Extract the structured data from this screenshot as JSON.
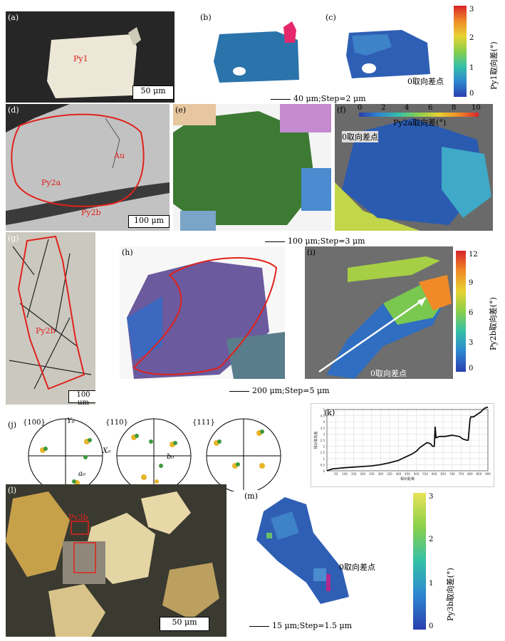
{
  "panels": {
    "a": {
      "label": "(a)",
      "mineral": "Py1",
      "scale": "50 μm"
    },
    "b": {
      "label": "(b)"
    },
    "c": {
      "label": "(c)",
      "zero_point": "0取向差点"
    },
    "d": {
      "label": "(d)",
      "au": "Au",
      "py2a": "Py2a",
      "py2b": "Py2b",
      "scale": "100 μm"
    },
    "e": {
      "label": "(e)"
    },
    "f": {
      "label": "(f)",
      "zero_point": "0取向差点"
    },
    "g": {
      "label": "(g)",
      "py2b": "Py2b",
      "scale": "100 μm"
    },
    "h": {
      "label": "(h)"
    },
    "i": {
      "label": "(i)",
      "zero_point": "0取向差点"
    },
    "j": {
      "label": "(j)",
      "poles": [
        "{100}",
        "{110}",
        "{111}"
      ],
      "y0": "Y₀",
      "x0": "X₀",
      "a0": "a₀",
      "b0": "b₀"
    },
    "k": {
      "label": "(k)"
    },
    "l": {
      "label": "(l)",
      "py3b": "Py3b",
      "scale": "50 μm"
    },
    "m": {
      "label": "(m)",
      "zero_point": "0取向差点"
    }
  },
  "captions": {
    "row1": "40 μm;Step=2 μm",
    "row2": "100 μm;Step=3 μm",
    "row3": "200 μm;Step=5 μm",
    "row5": "15 μm;Step=1.5 μm"
  },
  "colorbars": {
    "py1": {
      "title": "Py1取向差(°)",
      "ticks": [
        "0",
        "1",
        "2",
        "3"
      ]
    },
    "py2a": {
      "title": "Py2a取向差(°)",
      "ticks": [
        "0",
        "2",
        "4",
        "6",
        "8",
        "10"
      ]
    },
    "py2b": {
      "title": "Py2b取向差(°)",
      "ticks": [
        "0",
        "3",
        "6",
        "9",
        "12"
      ]
    },
    "py3b": {
      "title": "Py3b取向差(°)",
      "ticks": [
        "0",
        "1",
        "2",
        "3"
      ]
    }
  },
  "colors": {
    "red_outline": "#e0221c",
    "ebsd_blue": "#2e72b0",
    "ebsd_green": "#3d7a34",
    "ebsd_purple": "#6b5a9e"
  },
  "chart_data": {
    "type": "line",
    "title": "",
    "xlabel": "相对距离",
    "ylabel": "相对取向差",
    "xlim": [
      0,
      900
    ],
    "ylim": [
      0,
      5
    ],
    "x_ticks": [
      "50",
      "100",
      "150",
      "200",
      "250",
      "300",
      "350",
      "400",
      "450",
      "500",
      "550",
      "600",
      "650",
      "700",
      "750",
      "800",
      "850",
      "900"
    ],
    "y_ticks": [
      "0",
      "0.5",
      "1",
      "1.5",
      "2",
      "2.5",
      "3",
      "3.5",
      "4",
      "4.5",
      "5"
    ],
    "series": [
      {
        "x": [
          0,
          30,
          60,
          100,
          150,
          200,
          250,
          300,
          350,
          400,
          450,
          480,
          500,
          520,
          540,
          560,
          580,
          590,
          600,
          605,
          610,
          630,
          660,
          700,
          740,
          760,
          780,
          790,
          800,
          805,
          820,
          840,
          860,
          880,
          900
        ],
        "y": [
          0,
          0.15,
          0.2,
          0.25,
          0.3,
          0.35,
          0.4,
          0.5,
          0.65,
          0.85,
          1.2,
          1.4,
          1.6,
          1.9,
          2.1,
          2.3,
          2.2,
          2.0,
          2.0,
          3.6,
          2.7,
          2.8,
          2.8,
          2.9,
          2.8,
          2.6,
          2.5,
          2.5,
          4.2,
          4.4,
          4.4,
          4.6,
          4.8,
          5.1,
          5.2
        ]
      }
    ]
  }
}
